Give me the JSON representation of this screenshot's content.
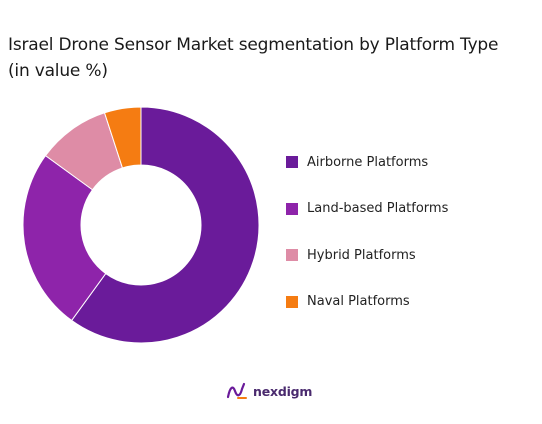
{
  "chart_data": {
    "type": "pie",
    "title": "Israel Drone Sensor Market segmentation by Platform Type (in value %)",
    "legend_position": "right",
    "slices": [
      {
        "name": "Airborne Platforms",
        "value": 60,
        "color": "#6a1b9a"
      },
      {
        "name": "Land-based Platforms",
        "value": 25,
        "color": "#8e24aa"
      },
      {
        "name": "Hybrid Platforms",
        "value": 10,
        "color": "#de8ca6"
      },
      {
        "name": "Naval Platforms",
        "value": 5,
        "color": "#f57c12"
      }
    ]
  },
  "brand": {
    "name": "nexdigm",
    "logo": "nexdigm-logo-icon"
  }
}
